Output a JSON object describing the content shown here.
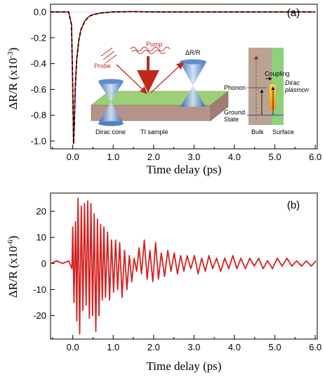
{
  "chart_data": [
    {
      "type": "line",
      "panel_label": "(a)",
      "xlabel": "Time delay (ps)",
      "ylabel_main": "ΔR/R (x10",
      "ylabel_exp": "-3",
      "ylabel_close": ")",
      "xlim": [
        -0.55,
        6.05
      ],
      "ylim": [
        -1.06,
        0.06
      ],
      "xticks": [
        "0.0",
        "1.0",
        "2.0",
        "3.0",
        "4.0",
        "5.0",
        "6.0"
      ],
      "yticks": [
        "0.0",
        "-0.2",
        "-0.4",
        "-0.6",
        "-0.8",
        "-1.0"
      ],
      "series": [
        {
          "style": "solid",
          "color": "#d62020",
          "x": [
            -0.55,
            -0.1,
            -0.03,
            0.0,
            0.02,
            0.04,
            0.06,
            0.1,
            0.15,
            0.2,
            0.3,
            0.4,
            0.5,
            0.7,
            1.0,
            1.5,
            2.0,
            3.0,
            4.0,
            5.0,
            6.0
          ],
          "y": [
            0.0,
            0.0,
            -0.1,
            -0.6,
            -1.02,
            -0.85,
            -0.6,
            -0.36,
            -0.22,
            -0.14,
            -0.07,
            -0.035,
            -0.02,
            -0.008,
            0.0,
            0.003,
            0.0,
            0.0,
            0.0,
            0.0,
            0.0
          ]
        },
        {
          "style": "dashed",
          "color": "#000000",
          "x": [
            -0.55,
            -0.1,
            -0.03,
            0.0,
            0.02,
            0.04,
            0.06,
            0.1,
            0.15,
            0.2,
            0.3,
            0.4,
            0.5,
            0.7,
            1.0,
            1.5,
            2.0,
            3.0,
            4.0,
            5.0,
            6.0
          ],
          "y": [
            0.0,
            0.0,
            -0.1,
            -0.6,
            -1.02,
            -0.85,
            -0.6,
            -0.36,
            -0.22,
            -0.14,
            -0.07,
            -0.035,
            -0.02,
            -0.008,
            0.0,
            0.003,
            0.0,
            0.0,
            0.0,
            0.0,
            0.0
          ]
        }
      ],
      "inset_labels": {
        "pump": "Pump",
        "probe": "Probe",
        "dr": "ΔR/R",
        "dirac_cone": "Dirac cone",
        "ti_sample": "TI sample",
        "phonon": "Phonon",
        "coupling": "Coupling",
        "dirac": "Dirac",
        "plasmon": "plasmon",
        "ground1": "Ground",
        "ground2": "State",
        "bulk": "Bulk",
        "surface": "Surface"
      }
    },
    {
      "type": "line",
      "panel_label": "(b)",
      "xlabel": "Time delay (ps)",
      "ylabel_main": "ΔR/R (x10",
      "ylabel_exp": "-6",
      "ylabel_close": ")",
      "xlim": [
        -0.55,
        6.05
      ],
      "ylim": [
        -29,
        27
      ],
      "xticks": [
        "0.0",
        "1.0",
        "2.0",
        "3.0",
        "4.0",
        "5.0",
        "6.0"
      ],
      "yticks": [
        "20",
        "10",
        "0",
        "-10",
        "-20"
      ],
      "series": [
        {
          "style": "solid",
          "color": "#d62020",
          "x": [
            -0.55,
            -0.4,
            -0.25,
            -0.1,
            -0.02,
            0.0,
            0.03,
            0.07,
            0.1,
            0.13,
            0.17,
            0.21,
            0.25,
            0.29,
            0.33,
            0.37,
            0.41,
            0.45,
            0.49,
            0.53,
            0.57,
            0.61,
            0.65,
            0.69,
            0.73,
            0.77,
            0.81,
            0.86,
            0.91,
            0.96,
            1.01,
            1.06,
            1.11,
            1.16,
            1.22,
            1.28,
            1.34,
            1.4,
            1.46,
            1.52,
            1.58,
            1.64,
            1.7,
            1.77,
            1.84,
            1.91,
            1.98,
            2.05,
            2.12,
            2.19,
            2.27,
            2.35,
            2.43,
            2.51,
            2.59,
            2.67,
            2.75,
            2.83,
            2.92,
            3.01,
            3.1,
            3.19,
            3.28,
            3.37,
            3.46,
            3.56,
            3.66,
            3.76,
            3.86,
            3.96,
            4.06,
            4.16,
            4.27,
            4.38,
            4.49,
            4.6,
            4.71,
            4.82,
            4.94,
            5.06,
            5.18,
            5.3,
            5.42,
            5.54,
            5.66,
            5.78,
            5.9,
            6.02
          ],
          "y": [
            0,
            1,
            0,
            1,
            -2,
            14,
            -15,
            16,
            -22,
            25,
            -27,
            22,
            -18,
            23,
            -16,
            24,
            -21,
            23,
            -20,
            19,
            -26,
            17,
            -20,
            15,
            -14,
            14,
            -13,
            12,
            -14,
            9,
            -11,
            9,
            -10,
            8,
            -13,
            5,
            -10,
            3,
            -7,
            2,
            -3,
            6,
            -4,
            9,
            -6,
            5,
            -7,
            8,
            -6,
            4,
            -5,
            5,
            -3,
            4,
            -4,
            3,
            -3,
            3,
            -2,
            3,
            -4,
            2,
            -3,
            3,
            -2,
            2,
            -3,
            2,
            -2,
            3,
            -2,
            2,
            -2,
            2,
            -1,
            2,
            -2,
            1,
            -2,
            2,
            -1,
            2,
            -1,
            1,
            -1,
            1,
            -1,
            1
          ]
        }
      ]
    }
  ]
}
